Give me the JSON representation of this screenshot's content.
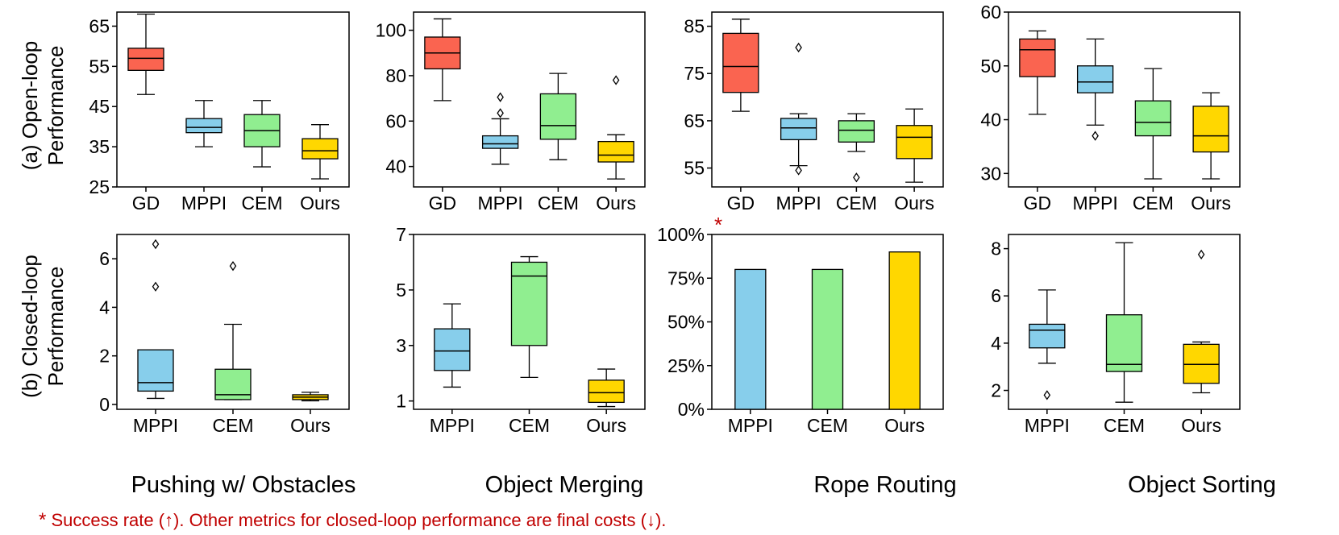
{
  "row_labels": [
    {
      "line1": "(a) Open-loop",
      "line2": "Performance"
    },
    {
      "line1": "(b) Closed-loop",
      "line2": "Performance"
    }
  ],
  "column_titles": [
    "Pushing w/ Obstacles",
    "Object Merging",
    "Rope Routing",
    "Object Sorting"
  ],
  "footnote": {
    "star": "*",
    "text": " Success rate (↑). Other metrics for closed-loop performance are final costs (↓)."
  },
  "colors": {
    "GD": "#fa6450",
    "MPPI": "#87ceeb",
    "CEM": "#90ee90",
    "Ours": "#ffd700",
    "footnote": "#c00000"
  },
  "chart_data": [
    {
      "id": "a1",
      "type": "box",
      "row": "open-loop",
      "task": "Pushing w/ Obstacles",
      "categories": [
        "GD",
        "MPPI",
        "CEM",
        "Ours"
      ],
      "ylim": [
        25,
        68.5
      ],
      "yticks": [
        25,
        35,
        45,
        55,
        65
      ],
      "ytick_labels": [
        "25",
        "35",
        "45",
        "55",
        "65"
      ],
      "boxes": [
        {
          "q1": 54,
          "median": 57,
          "q3": 59.5,
          "whislo": 48,
          "whishi": 68,
          "fliers": []
        },
        {
          "q1": 38.5,
          "median": 39.8,
          "q3": 42,
          "whislo": 35,
          "whishi": 46.5,
          "fliers": []
        },
        {
          "q1": 35,
          "median": 39,
          "q3": 43,
          "whislo": 30,
          "whishi": 46.5,
          "fliers": []
        },
        {
          "q1": 32,
          "median": 34,
          "q3": 37,
          "whislo": 27,
          "whishi": 40.5,
          "fliers": []
        }
      ]
    },
    {
      "id": "a2",
      "type": "box",
      "row": "open-loop",
      "task": "Object Merging",
      "categories": [
        "GD",
        "MPPI",
        "CEM",
        "Ours"
      ],
      "ylim": [
        31,
        108
      ],
      "yticks": [
        40,
        60,
        80,
        100
      ],
      "ytick_labels": [
        "40",
        "60",
        "80",
        "100"
      ],
      "boxes": [
        {
          "q1": 83,
          "median": 90,
          "q3": 97,
          "whislo": 69,
          "whishi": 105,
          "fliers": []
        },
        {
          "q1": 48,
          "median": 50,
          "q3": 53.5,
          "whislo": 41,
          "whishi": 61,
          "fliers": [
            63.5,
            70.5
          ]
        },
        {
          "q1": 52,
          "median": 58,
          "q3": 72,
          "whislo": 43,
          "whishi": 81,
          "fliers": []
        },
        {
          "q1": 42,
          "median": 45,
          "q3": 51,
          "whislo": 34.5,
          "whishi": 54,
          "fliers": [
            78
          ]
        }
      ]
    },
    {
      "id": "a3",
      "type": "box",
      "row": "open-loop",
      "task": "Rope Routing",
      "categories": [
        "GD",
        "MPPI",
        "CEM",
        "Ours"
      ],
      "ylim": [
        51,
        88
      ],
      "yticks": [
        55,
        65,
        75,
        85
      ],
      "ytick_labels": [
        "55",
        "65",
        "75",
        "85"
      ],
      "boxes": [
        {
          "q1": 71,
          "median": 76.5,
          "q3": 83.5,
          "whislo": 67,
          "whishi": 86.5,
          "fliers": []
        },
        {
          "q1": 61,
          "median": 63.5,
          "q3": 65.5,
          "whislo": 55.5,
          "whishi": 66.5,
          "fliers": [
            54.5,
            80.5
          ]
        },
        {
          "q1": 60.5,
          "median": 63,
          "q3": 65,
          "whislo": 58.5,
          "whishi": 66.5,
          "fliers": [
            53
          ]
        },
        {
          "q1": 57,
          "median": 61.5,
          "q3": 64,
          "whislo": 52,
          "whishi": 67.5,
          "fliers": []
        }
      ]
    },
    {
      "id": "a4",
      "type": "box",
      "row": "open-loop",
      "task": "Object Sorting",
      "categories": [
        "GD",
        "MPPI",
        "CEM",
        "Ours"
      ],
      "ylim": [
        27.5,
        60
      ],
      "yticks": [
        30,
        40,
        50,
        60
      ],
      "ytick_labels": [
        "30",
        "40",
        "50",
        "60"
      ],
      "boxes": [
        {
          "q1": 48,
          "median": 53,
          "q3": 55,
          "whislo": 41,
          "whishi": 56.5,
          "fliers": []
        },
        {
          "q1": 45,
          "median": 47,
          "q3": 50,
          "whislo": 39,
          "whishi": 55,
          "fliers": [
            37
          ]
        },
        {
          "q1": 37,
          "median": 39.5,
          "q3": 43.5,
          "whislo": 29,
          "whishi": 49.5,
          "fliers": []
        },
        {
          "q1": 34,
          "median": 37,
          "q3": 42.5,
          "whislo": 29,
          "whishi": 45,
          "fliers": []
        }
      ]
    },
    {
      "id": "b1",
      "type": "box",
      "row": "closed-loop",
      "task": "Pushing w/ Obstacles",
      "categories": [
        "MPPI",
        "CEM",
        "Ours"
      ],
      "ylim": [
        -0.2,
        7
      ],
      "yticks": [
        0,
        2,
        4,
        6
      ],
      "ytick_labels": [
        "0",
        "2",
        "4",
        "6"
      ],
      "boxes": [
        {
          "q1": 0.55,
          "median": 0.9,
          "q3": 2.25,
          "whislo": 0.25,
          "whishi": 2.25,
          "fliers": [
            4.85,
            6.6
          ]
        },
        {
          "q1": 0.2,
          "median": 0.4,
          "q3": 1.45,
          "whislo": 0.2,
          "whishi": 3.3,
          "fliers": [
            5.7
          ]
        },
        {
          "q1": 0.2,
          "median": 0.3,
          "q3": 0.4,
          "whislo": 0.15,
          "whishi": 0.5,
          "fliers": []
        }
      ]
    },
    {
      "id": "b2",
      "type": "box",
      "row": "closed-loop",
      "task": "Object Merging",
      "categories": [
        "MPPI",
        "CEM",
        "Ours"
      ],
      "ylim": [
        0.7,
        7
      ],
      "yticks": [
        1,
        3,
        5,
        7
      ],
      "ytick_labels": [
        "1",
        "3",
        "5",
        "7"
      ],
      "boxes": [
        {
          "q1": 2.1,
          "median": 2.8,
          "q3": 3.6,
          "whislo": 1.5,
          "whishi": 4.5,
          "fliers": []
        },
        {
          "q1": 3.0,
          "median": 5.5,
          "q3": 6.0,
          "whislo": 1.85,
          "whishi": 6.2,
          "fliers": []
        },
        {
          "q1": 0.95,
          "median": 1.3,
          "q3": 1.75,
          "whislo": 0.8,
          "whishi": 2.15,
          "fliers": []
        }
      ]
    },
    {
      "id": "b3",
      "type": "bar",
      "row": "closed-loop",
      "task": "Rope Routing",
      "categories": [
        "MPPI",
        "CEM",
        "Ours"
      ],
      "values": [
        0.8,
        0.8,
        0.9
      ],
      "ylim": [
        0,
        1.0
      ],
      "yticks": [
        0,
        0.25,
        0.5,
        0.75,
        1.0
      ],
      "ytick_labels": [
        "0%",
        "25%",
        "50%",
        "75%",
        "100%"
      ],
      "annotation": "*"
    },
    {
      "id": "b4",
      "type": "box",
      "row": "closed-loop",
      "task": "Object Sorting",
      "categories": [
        "MPPI",
        "CEM",
        "Ours"
      ],
      "ylim": [
        1.2,
        8.6
      ],
      "yticks": [
        2,
        4,
        6,
        8
      ],
      "ytick_labels": [
        "2",
        "4",
        "6",
        "8"
      ],
      "boxes": [
        {
          "q1": 3.8,
          "median": 4.55,
          "q3": 4.8,
          "whislo": 3.15,
          "whishi": 6.25,
          "fliers": [
            1.8
          ]
        },
        {
          "q1": 2.8,
          "median": 3.1,
          "q3": 5.2,
          "whislo": 1.5,
          "whishi": 8.25,
          "fliers": []
        },
        {
          "q1": 2.3,
          "median": 3.1,
          "q3": 3.95,
          "whislo": 1.9,
          "whishi": 4.05,
          "fliers": [
            7.75
          ]
        }
      ]
    }
  ]
}
